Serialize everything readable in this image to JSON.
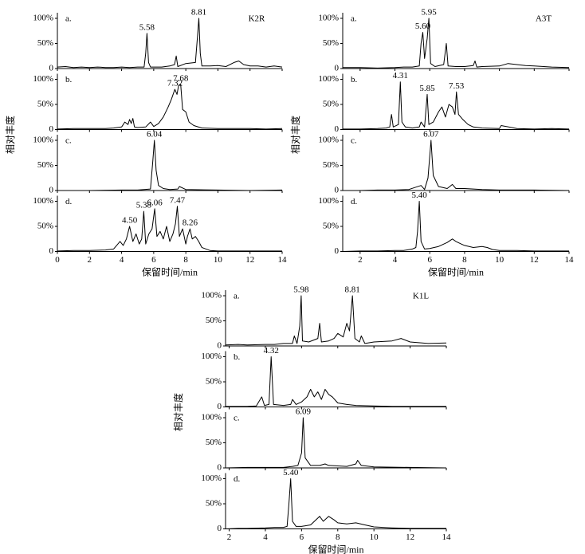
{
  "chart_data": [
    {
      "type": "line",
      "title": "K2R",
      "x_label": "保留时间/min",
      "y_label": "相对丰度",
      "xlim": [
        0,
        14
      ],
      "xticks": [
        0,
        2,
        4,
        6,
        8,
        10,
        12,
        14
      ],
      "ylim": [
        0,
        100
      ],
      "yticks": [
        0,
        {
          "value": 50,
          "label": "50%"
        },
        {
          "value": 100,
          "label": "100%"
        }
      ],
      "color": "#000000",
      "panels": [
        {
          "label": "a.",
          "x": [
            0,
            0.5,
            1,
            1.5,
            2,
            2.5,
            3,
            3.5,
            4,
            4.5,
            5,
            5.4,
            5.5,
            5.58,
            5.68,
            5.8,
            6.5,
            7,
            7.3,
            7.4,
            7.5,
            8,
            8.6,
            8.72,
            8.81,
            8.9,
            9,
            9.5,
            10,
            10.5,
            11,
            11.3,
            11.6,
            12,
            12.5,
            13,
            13.5,
            14
          ],
          "values": [
            3,
            4,
            2,
            3,
            2,
            3,
            2,
            2,
            3,
            2,
            3,
            3,
            30,
            70,
            12,
            3,
            3,
            5,
            8,
            25,
            4,
            10,
            12,
            60,
            100,
            30,
            5,
            5,
            6,
            4,
            12,
            15,
            8,
            5,
            5,
            3,
            5,
            3
          ],
          "annotations": [
            {
              "x": 5.58,
              "text": "5.58"
            },
            {
              "x": 8.81,
              "text": "8.81"
            }
          ]
        },
        {
          "label": "b.",
          "x": [
            0,
            1,
            2,
            3,
            3.5,
            4,
            4.2,
            4.4,
            4.5,
            4.6,
            4.7,
            4.8,
            5,
            5.5,
            5.8,
            6,
            6.3,
            6.6,
            6.9,
            7.1,
            7.32,
            7.45,
            7.55,
            7.68,
            7.8,
            8,
            8.2,
            8.5,
            9,
            10,
            11,
            12,
            13,
            14
          ],
          "values": [
            1,
            2,
            2,
            2,
            3,
            5,
            15,
            10,
            20,
            12,
            22,
            5,
            4,
            5,
            15,
            6,
            12,
            25,
            45,
            60,
            80,
            70,
            88,
            90,
            40,
            35,
            15,
            8,
            3,
            2,
            2,
            2,
            1,
            2
          ],
          "annotations": [
            {
              "x": 7.32,
              "text": "7.32"
            },
            {
              "x": 7.68,
              "text": "7.68"
            }
          ]
        },
        {
          "label": "c.",
          "x": [
            0,
            2,
            4,
            5,
            5.8,
            5.95,
            6.04,
            6.15,
            6.3,
            6.6,
            7,
            7.5,
            7.6,
            8,
            10,
            12,
            14
          ],
          "values": [
            0,
            0,
            1,
            1,
            3,
            60,
            100,
            40,
            10,
            4,
            2,
            3,
            8,
            2,
            1,
            0,
            1
          ],
          "annotations": [
            {
              "x": 6.04,
              "text": "6.04"
            }
          ]
        },
        {
          "label": "d.",
          "x": [
            0,
            1,
            2,
            3,
            3.5,
            3.9,
            4.1,
            4.3,
            4.5,
            4.7,
            4.9,
            5.1,
            5.25,
            5.38,
            5.5,
            5.7,
            5.9,
            6.06,
            6.2,
            6.4,
            6.6,
            6.8,
            7,
            7.2,
            7.35,
            7.47,
            7.6,
            7.8,
            8,
            8.1,
            8.26,
            8.4,
            8.6,
            8.8,
            9,
            9.5,
            10,
            11,
            12,
            13,
            14
          ],
          "values": [
            1,
            2,
            2,
            3,
            5,
            20,
            12,
            25,
            50,
            20,
            35,
            15,
            25,
            80,
            15,
            35,
            45,
            85,
            30,
            40,
            25,
            50,
            20,
            35,
            55,
            90,
            30,
            45,
            15,
            30,
            45,
            25,
            30,
            20,
            8,
            2,
            1,
            1,
            1,
            1,
            1
          ],
          "annotations": [
            {
              "x": 5.38,
              "text": "5.38"
            },
            {
              "x": 4.5,
              "text": "4.50"
            },
            {
              "x": 6.06,
              "text": "6.06"
            },
            {
              "x": 7.47,
              "text": "7.47"
            },
            {
              "x": 8.26,
              "text": "8.26"
            }
          ]
        }
      ]
    },
    {
      "type": "line",
      "title": "A3T",
      "x_label": "保留时间/min",
      "y_label": "相对丰度",
      "xlim": [
        1,
        14
      ],
      "xticks": [
        2,
        4,
        6,
        8,
        10,
        12,
        14
      ],
      "ylim": [
        0,
        100
      ],
      "yticks": [
        0,
        {
          "value": 50,
          "label": "50%"
        },
        {
          "value": 100,
          "label": "100%"
        }
      ],
      "color": "#000000",
      "panels": [
        {
          "label": "a.",
          "x": [
            1,
            2,
            3,
            4,
            4.5,
            5,
            5.4,
            5.5,
            5.6,
            5.7,
            5.85,
            5.95,
            6.05,
            6.3,
            6.8,
            6.95,
            7.05,
            7.5,
            8,
            8.5,
            8.6,
            8.7,
            9,
            10,
            10.5,
            11,
            11.5,
            12,
            13,
            14
          ],
          "values": [
            2,
            2,
            1,
            2,
            3,
            3,
            5,
            50,
            72,
            20,
            60,
            100,
            10,
            4,
            8,
            50,
            5,
            4,
            4,
            6,
            15,
            3,
            4,
            5,
            10,
            8,
            6,
            5,
            3,
            2
          ],
          "annotations": [
            {
              "x": 5.6,
              "text": "5.60"
            },
            {
              "x": 5.95,
              "text": "5.95"
            }
          ]
        },
        {
          "label": "b.",
          "x": [
            1,
            2,
            3,
            3.5,
            3.7,
            3.8,
            3.9,
            4.2,
            4.31,
            4.4,
            4.6,
            5,
            5.4,
            5.5,
            5.7,
            5.85,
            5.95,
            6.2,
            6.5,
            6.7,
            6.9,
            7.1,
            7.3,
            7.45,
            7.53,
            7.65,
            7.9,
            8.2,
            8.5,
            9,
            10,
            10.1,
            11,
            12,
            13,
            14
          ],
          "values": [
            1,
            1,
            2,
            3,
            5,
            30,
            5,
            10,
            95,
            15,
            5,
            3,
            5,
            15,
            5,
            70,
            10,
            15,
            35,
            45,
            25,
            50,
            45,
            30,
            75,
            30,
            20,
            10,
            5,
            3,
            2,
            8,
            2,
            1,
            2,
            1
          ],
          "annotations": [
            {
              "x": 4.31,
              "text": "4.31"
            },
            {
              "x": 5.85,
              "text": "5.85"
            },
            {
              "x": 7.53,
              "text": "7.53"
            }
          ]
        },
        {
          "label": "c.",
          "x": [
            1,
            2,
            3,
            4,
            4.8,
            5.5,
            5.7,
            5.9,
            6.07,
            6.2,
            6.5,
            7,
            7.3,
            7.5,
            8,
            8.5,
            9,
            10,
            12,
            14
          ],
          "values": [
            0,
            0,
            1,
            1,
            2,
            10,
            2,
            25,
            100,
            30,
            8,
            4,
            12,
            4,
            4,
            3,
            2,
            1,
            1,
            0
          ],
          "annotations": [
            {
              "x": 6.07,
              "text": "6.07"
            }
          ]
        },
        {
          "label": "d.",
          "x": [
            1,
            2,
            3,
            4,
            4.5,
            5,
            5.2,
            5.3,
            5.4,
            5.5,
            5.7,
            6,
            6.5,
            7,
            7.3,
            7.5,
            7.8,
            8,
            8.5,
            9,
            9.3,
            9.6,
            10,
            11,
            12,
            14
          ],
          "values": [
            0,
            1,
            1,
            2,
            2,
            5,
            8,
            40,
            100,
            20,
            5,
            6,
            10,
            18,
            25,
            20,
            15,
            12,
            8,
            10,
            8,
            4,
            2,
            2,
            1,
            1
          ],
          "annotations": [
            {
              "x": 5.4,
              "text": "5.40"
            }
          ]
        }
      ]
    },
    {
      "type": "line",
      "title": "K1L",
      "x_label": "保留时间/min",
      "y_label": "相对丰度",
      "xlim": [
        1.8,
        14
      ],
      "xticks": [
        2,
        4,
        6,
        8,
        10,
        12,
        14
      ],
      "ylim": [
        0,
        100
      ],
      "yticks": [
        0,
        {
          "value": 50,
          "label": "50%"
        },
        {
          "value": 100,
          "label": "100%"
        }
      ],
      "color": "#000000",
      "panels": [
        {
          "label": "a.",
          "x": [
            1.8,
            2.5,
            3,
            4,
            4.5,
            5,
            5.5,
            5.6,
            5.75,
            5.9,
            5.98,
            6.05,
            6.4,
            6.9,
            7.0,
            7.1,
            7.5,
            7.8,
            8.0,
            8.3,
            8.5,
            8.65,
            8.81,
            8.95,
            9.2,
            9.3,
            9.5,
            10,
            11,
            11.5,
            12,
            13,
            14
          ],
          "values": [
            2,
            3,
            2,
            3,
            3,
            5,
            5,
            20,
            5,
            40,
            100,
            10,
            8,
            15,
            45,
            8,
            10,
            15,
            25,
            18,
            45,
            30,
            100,
            15,
            8,
            20,
            5,
            8,
            10,
            15,
            8,
            5,
            6
          ],
          "annotations": [
            {
              "x": 5.98,
              "text": "5.98"
            },
            {
              "x": 8.81,
              "text": "8.81"
            }
          ]
        },
        {
          "label": "b.",
          "x": [
            1.8,
            2.5,
            3,
            3.5,
            3.8,
            3.95,
            4.2,
            4.32,
            4.45,
            5,
            5.4,
            5.5,
            5.7,
            6,
            6.3,
            6.5,
            6.7,
            6.9,
            7.1,
            7.3,
            7.5,
            7.7,
            8,
            8.5,
            9,
            10,
            11,
            12,
            14
          ],
          "values": [
            1,
            1,
            1,
            2,
            20,
            3,
            5,
            100,
            5,
            3,
            5,
            15,
            5,
            10,
            20,
            35,
            20,
            30,
            15,
            35,
            25,
            20,
            8,
            5,
            3,
            2,
            1,
            1,
            1
          ],
          "annotations": [
            {
              "x": 4.32,
              "text": "4.32"
            }
          ]
        },
        {
          "label": "c.",
          "x": [
            1.8,
            3,
            4,
            5,
            5.5,
            5.8,
            6.0,
            6.09,
            6.2,
            6.5,
            7,
            7.3,
            7.5,
            8,
            8.5,
            9,
            9.1,
            9.3,
            10,
            12,
            14
          ],
          "values": [
            0,
            1,
            1,
            1,
            3,
            5,
            30,
            100,
            20,
            5,
            5,
            8,
            5,
            4,
            3,
            8,
            15,
            5,
            2,
            1,
            0
          ],
          "annotations": [
            {
              "x": 6.09,
              "text": "6.09"
            }
          ]
        },
        {
          "label": "d.",
          "x": [
            1.8,
            2.5,
            3,
            4,
            4.5,
            5,
            5.2,
            5.3,
            5.4,
            5.5,
            5.7,
            6,
            6.5,
            7,
            7.2,
            7.5,
            7.8,
            8,
            8.5,
            9,
            9.5,
            10,
            11,
            12,
            14
          ],
          "values": [
            0,
            1,
            1,
            2,
            3,
            3,
            5,
            50,
            100,
            15,
            5,
            5,
            8,
            25,
            15,
            25,
            18,
            12,
            10,
            12,
            8,
            4,
            2,
            1,
            1
          ],
          "annotations": [
            {
              "x": 5.4,
              "text": "5.40"
            }
          ]
        }
      ]
    }
  ]
}
